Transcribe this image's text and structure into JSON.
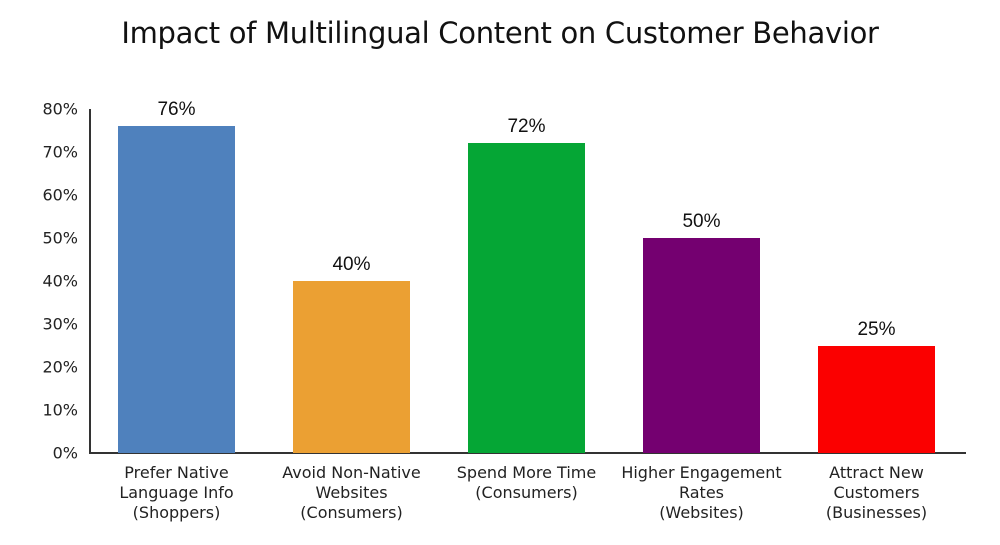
{
  "chart_data": {
    "type": "bar",
    "title": "Impact of Multilingual Content on Customer Behavior",
    "xlabel": "",
    "ylabel": "",
    "ylim": [
      0,
      80
    ],
    "yticks": [
      "0%",
      "10%",
      "20%",
      "30%",
      "40%",
      "50%",
      "60%",
      "70%",
      "80%"
    ],
    "grid": false,
    "legend": null,
    "categories": [
      "Prefer Native Language Info (Shoppers)",
      "Avoid Non-Native Websites (Consumers)",
      "Spend More Time (Consumers)",
      "Higher Engagement Rates (Websites)",
      "Attract New Customers (Businesses)"
    ],
    "category_lines": [
      "Prefer Native\nLanguage Info\n(Shoppers)",
      "Avoid Non-Native\nWebsites\n(Consumers)",
      "Spend More Time\n(Consumers)",
      "Higher Engagement\nRates\n(Websites)",
      "Attract New\nCustomers\n(Businesses)"
    ],
    "values": [
      76,
      40,
      72,
      50,
      25
    ],
    "value_labels": [
      "76%",
      "40%",
      "72%",
      "50%",
      "25%"
    ],
    "colors": [
      "#4f81bd",
      "#eba033",
      "#05a635",
      "#740070",
      "#fb0000"
    ]
  }
}
